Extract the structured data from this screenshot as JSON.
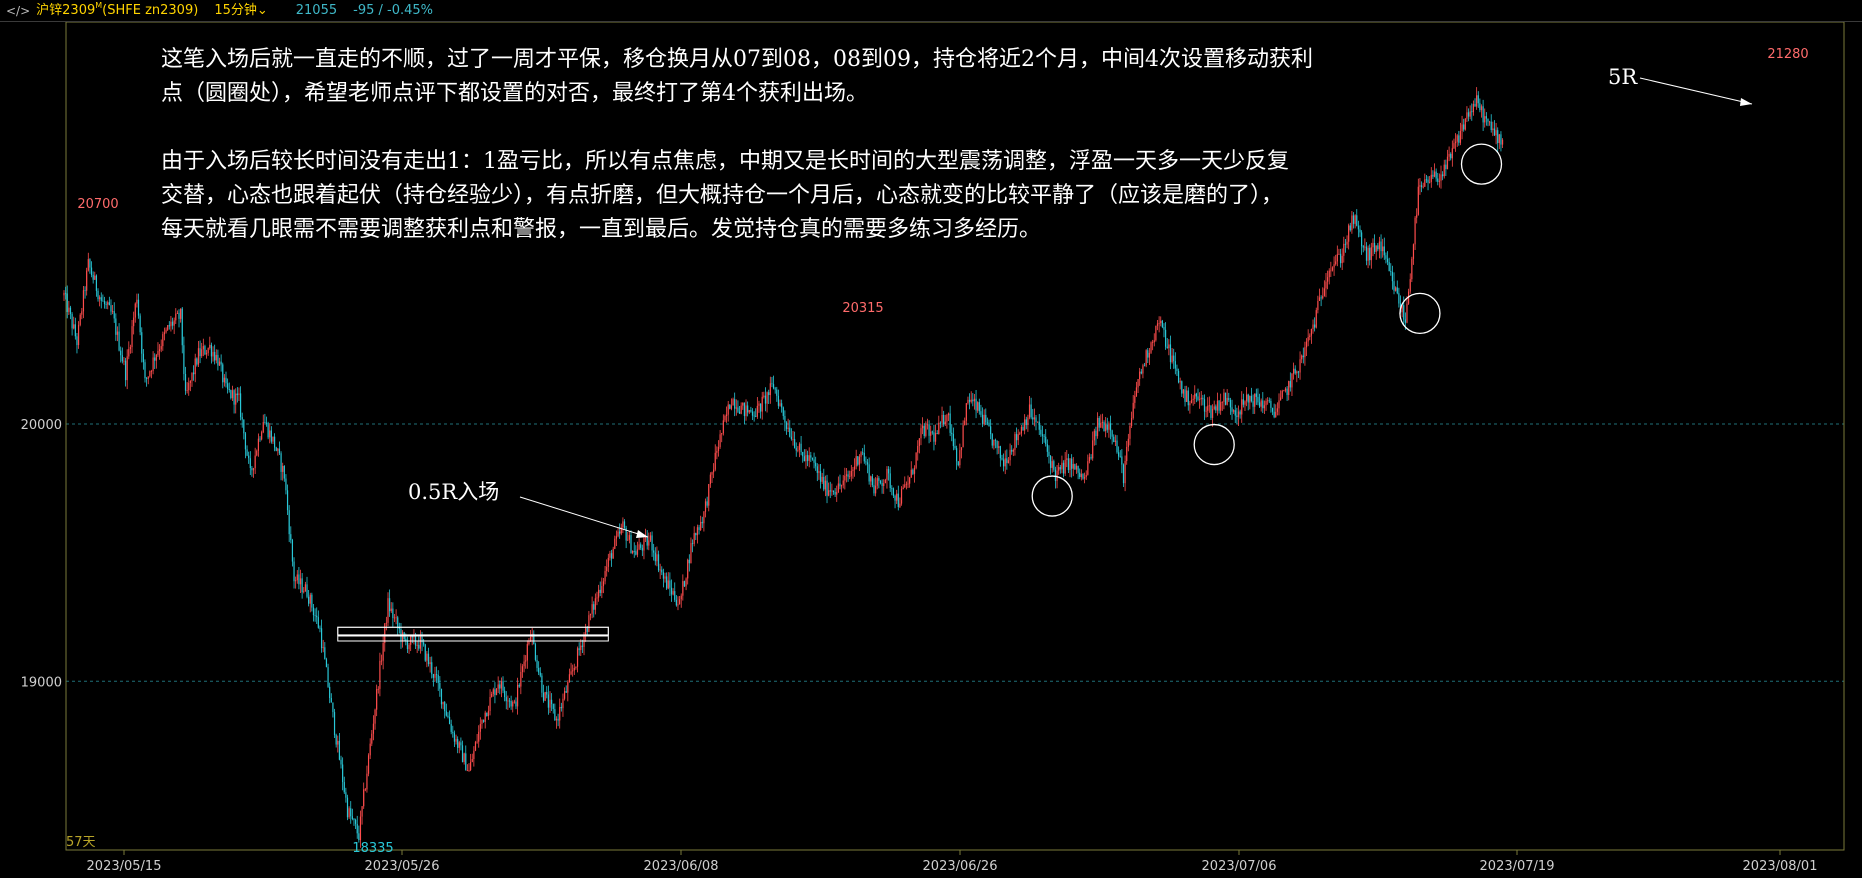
{
  "toolbar": {
    "icon": "chart-switch-icon",
    "symbol": "沪锌2309",
    "symbol_sup": "M",
    "symbol_code": "(SHFE zn2309)",
    "timeframe": "15分钟",
    "timeframe_icon": "chevron-down-icon",
    "last_price": "21055",
    "change": "-95 / -0.45%"
  },
  "notes": {
    "paragraph1": [
      "这笔入场后就一直走的不顺，过了一周才平保，移仓换月从07到08，08到09，持仓将近2个月，中间4次设置移动获利",
      "点（圆圈处），希望老师点评下都设置的对否，最终打了第4个获利出场。"
    ],
    "paragraph2": [
      "由于入场后较长时间没有走出1：1盈亏比，所以有点焦虑，中期又是长时间的大型震荡调整，浮盈一天多一天少反复",
      "交替，心态也跟着起伏（持仓经验少），有点折磨，但大概持仓一个月后，心态就变的比较平静了（应该是磨的了），",
      "每天就看几眼需不需要调整获利点和警报，一直到最后。发觉持仓真的需要多练习多经历。"
    ],
    "entry_label": "0.5R入场",
    "exit_label": "5R"
  },
  "chart_data": {
    "type": "candlestick",
    "symbol": "沪锌2309 (SHFE zn2309)",
    "timeframe": "15分钟",
    "bars_span_label": "57天",
    "x_tick_labels": [
      "2023/05/15",
      "2023/05/26",
      "2023/06/08",
      "2023/06/26",
      "2023/07/06",
      "2023/07/19",
      "2023/08/01"
    ],
    "y_tick_labels": [
      "20000",
      "19000"
    ],
    "ylim": [
      18360,
      21500
    ],
    "grid_y": [
      20000,
      19000
    ],
    "price_labels": [
      {
        "text": "20700",
        "value": 20700
      },
      {
        "text": "18335",
        "value": 18335
      },
      {
        "text": "20315",
        "value": 20315
      },
      {
        "text": "21280",
        "value": 21280
      }
    ],
    "path_points": [
      [
        0,
        20500
      ],
      [
        8,
        20320
      ],
      [
        15,
        20620
      ],
      [
        23,
        20480
      ],
      [
        30,
        20420
      ],
      [
        38,
        20200
      ],
      [
        45,
        20500
      ],
      [
        50,
        20160
      ],
      [
        57,
        20280
      ],
      [
        65,
        20380
      ],
      [
        72,
        20420
      ],
      [
        75,
        20100
      ],
      [
        83,
        20270
      ],
      [
        90,
        20300
      ],
      [
        95,
        20250
      ],
      [
        100,
        20130
      ],
      [
        108,
        20090
      ],
      [
        115,
        19800
      ],
      [
        123,
        20020
      ],
      [
        130,
        19920
      ],
      [
        136,
        19800
      ],
      [
        142,
        19400
      ],
      [
        150,
        19350
      ],
      [
        158,
        19200
      ],
      [
        165,
        18900
      ],
      [
        175,
        18500
      ],
      [
        182,
        18400
      ],
      [
        192,
        18900
      ],
      [
        200,
        19300
      ],
      [
        210,
        19150
      ],
      [
        220,
        19150
      ],
      [
        230,
        19000
      ],
      [
        240,
        18800
      ],
      [
        250,
        18650
      ],
      [
        258,
        18850
      ],
      [
        268,
        19000
      ],
      [
        278,
        18900
      ],
      [
        288,
        19200
      ],
      [
        296,
        18950
      ],
      [
        304,
        18850
      ],
      [
        312,
        19000
      ],
      [
        322,
        19200
      ],
      [
        330,
        19350
      ],
      [
        338,
        19500
      ],
      [
        345,
        19600
      ],
      [
        352,
        19500
      ],
      [
        362,
        19550
      ],
      [
        370,
        19400
      ],
      [
        380,
        19300
      ],
      [
        388,
        19550
      ],
      [
        395,
        19650
      ],
      [
        403,
        19900
      ],
      [
        412,
        20100
      ],
      [
        420,
        20050
      ],
      [
        428,
        20050
      ],
      [
        438,
        20150
      ],
      [
        446,
        20000
      ],
      [
        455,
        19880
      ],
      [
        462,
        19850
      ],
      [
        470,
        19750
      ],
      [
        478,
        19750
      ],
      [
        485,
        19800
      ],
      [
        492,
        19900
      ],
      [
        500,
        19750
      ],
      [
        508,
        19800
      ],
      [
        515,
        19700
      ],
      [
        523,
        19800
      ],
      [
        530,
        19980
      ],
      [
        538,
        19950
      ],
      [
        545,
        20050
      ],
      [
        552,
        19850
      ],
      [
        558,
        20100
      ],
      [
        565,
        20050
      ],
      [
        572,
        19950
      ],
      [
        580,
        19850
      ],
      [
        588,
        19950
      ],
      [
        596,
        20050
      ],
      [
        604,
        19950
      ],
      [
        612,
        19800
      ],
      [
        620,
        19850
      ],
      [
        630,
        19780
      ],
      [
        638,
        20000
      ],
      [
        646,
        20000
      ],
      [
        654,
        19800
      ],
      [
        662,
        20150
      ],
      [
        670,
        20300
      ],
      [
        676,
        20400
      ],
      [
        684,
        20250
      ],
      [
        692,
        20100
      ],
      [
        700,
        20100
      ],
      [
        708,
        20050
      ],
      [
        716,
        20100
      ],
      [
        724,
        20050
      ],
      [
        732,
        20100
      ],
      [
        740,
        20080
      ],
      [
        748,
        20050
      ],
      [
        756,
        20150
      ],
      [
        764,
        20250
      ],
      [
        772,
        20400
      ],
      [
        780,
        20600
      ],
      [
        788,
        20650
      ],
      [
        796,
        20800
      ],
      [
        804,
        20650
      ],
      [
        812,
        20700
      ],
      [
        820,
        20550
      ],
      [
        828,
        20400
      ],
      [
        836,
        20900
      ],
      [
        844,
        20950
      ],
      [
        852,
        20980
      ],
      [
        860,
        21100
      ],
      [
        866,
        21200
      ],
      [
        872,
        21250
      ],
      [
        880,
        21150
      ],
      [
        888,
        21100
      ]
    ],
    "highlight_circles": [
      {
        "x_bar": 610,
        "value": 19720
      },
      {
        "x_bar": 710,
        "value": 19920
      },
      {
        "x_bar": 837,
        "value": 20430
      },
      {
        "x_bar": 875,
        "value": 21010
      }
    ],
    "entry_zone": {
      "x_from_bar": 169,
      "x_to_bar": 336,
      "low": 19180,
      "high": 19210
    },
    "entry_bar": 336,
    "exit_bar": 868
  }
}
